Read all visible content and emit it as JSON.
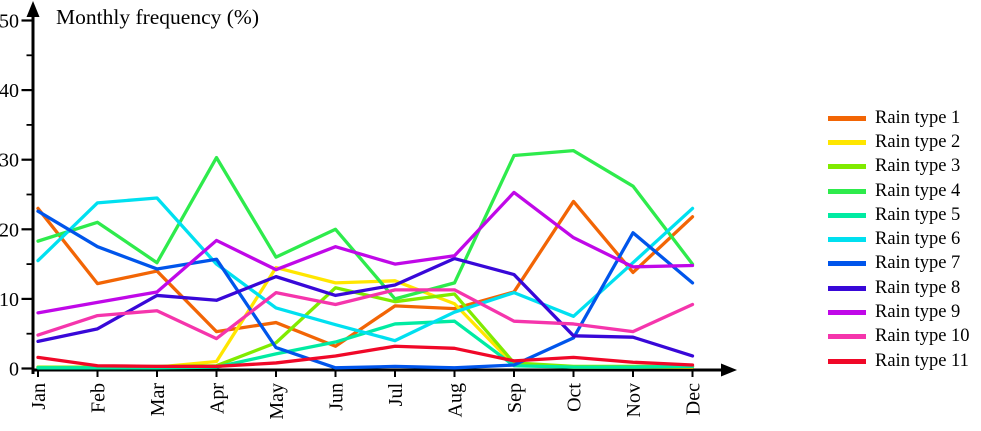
{
  "chart_data": {
    "type": "line",
    "title": "Monthly frequency (%)",
    "categories": [
      "Jan",
      "Feb",
      "Mar",
      "Apr",
      "May",
      "Jun",
      "Jul",
      "Aug",
      "Sep",
      "Oct",
      "Nov",
      "Dec"
    ],
    "yaxis": {
      "range": [
        0,
        50
      ],
      "major_ticks": [
        0,
        10,
        20,
        30,
        40,
        50
      ],
      "minor_ticks": [
        5,
        15,
        25,
        35,
        45
      ],
      "grid": "off"
    },
    "legend_position": "right",
    "series": [
      {
        "name": "Rain type 1",
        "color": "#F26505",
        "values": [
          23.0,
          12.2,
          14.0,
          5.3,
          6.6,
          3.2,
          9.0,
          8.6,
          11.0,
          24.0,
          13.8,
          21.8
        ]
      },
      {
        "name": "Rain type 2",
        "color": "#FFE600",
        "values": [
          0.2,
          0.2,
          0.2,
          1.0,
          14.5,
          12.3,
          12.6,
          9.3,
          0.5,
          0.2,
          0.2,
          0.2
        ]
      },
      {
        "name": "Rain type 3",
        "color": "#80EB00",
        "values": [
          0.2,
          0.2,
          0.3,
          0.4,
          3.7,
          11.6,
          9.6,
          10.7,
          0.8,
          0.3,
          0.3,
          0.3
        ]
      },
      {
        "name": "Rain type 4",
        "color": "#2EEB4C",
        "values": [
          18.3,
          21.0,
          15.2,
          30.3,
          16.0,
          20.0,
          10.0,
          12.3,
          30.6,
          31.3,
          26.2,
          15.0
        ]
      },
      {
        "name": "Rain type 5",
        "color": "#00EBA2",
        "values": [
          0.1,
          0.1,
          0.1,
          0.2,
          2.1,
          3.8,
          6.4,
          6.8,
          0.4,
          0.2,
          0.2,
          0.3
        ]
      },
      {
        "name": "Rain type 6",
        "color": "#00E0F0",
        "values": [
          15.5,
          23.8,
          24.5,
          15.0,
          8.7,
          6.3,
          4.0,
          8.1,
          10.9,
          7.5,
          15.2,
          23.0
        ]
      },
      {
        "name": "Rain type 7",
        "color": "#0055EB",
        "values": [
          22.6,
          17.5,
          14.3,
          15.7,
          3.0,
          0.1,
          0.3,
          0.1,
          0.5,
          4.4,
          19.5,
          12.3
        ]
      },
      {
        "name": "Rain type 8",
        "color": "#3808D8",
        "values": [
          3.9,
          5.7,
          10.5,
          9.8,
          13.2,
          10.5,
          12.0,
          15.8,
          13.5,
          4.7,
          4.5,
          1.8
        ]
      },
      {
        "name": "Rain type 9",
        "color": "#C008E8",
        "values": [
          8.0,
          9.5,
          11.0,
          18.4,
          14.2,
          17.5,
          15.0,
          16.2,
          25.3,
          18.8,
          14.6,
          14.8
        ]
      },
      {
        "name": "Rain type 10",
        "color": "#F535AC",
        "values": [
          4.8,
          7.6,
          8.3,
          4.3,
          10.9,
          9.2,
          11.3,
          11.3,
          6.8,
          6.4,
          5.3,
          9.2
        ]
      },
      {
        "name": "Rain type 11",
        "color": "#F00828",
        "values": [
          1.6,
          0.4,
          0.3,
          0.3,
          0.8,
          1.8,
          3.2,
          2.9,
          1.1,
          1.6,
          0.9,
          0.5
        ]
      }
    ]
  }
}
